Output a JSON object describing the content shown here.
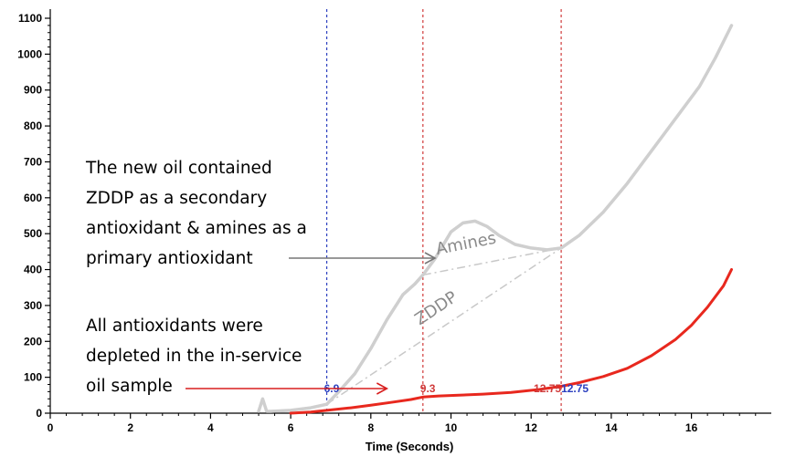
{
  "chart_data": {
    "type": "line",
    "xlabel": "Time (Seconds)",
    "ylabel": "",
    "xlim": [
      0,
      18
    ],
    "ylim": [
      0,
      1100
    ],
    "x_ticks": [
      "0",
      "2",
      "4",
      "6",
      "8",
      "10",
      "12",
      "14",
      "16"
    ],
    "y_ticks": [
      "0",
      "100",
      "200",
      "300",
      "400",
      "500",
      "600",
      "700",
      "800",
      "900",
      "1000",
      "1100"
    ],
    "grid": false,
    "series": [
      {
        "color": "#cfcfcf",
        "x": [
          5.2,
          5.3,
          5.4,
          5.5,
          6.0,
          6.5,
          6.9,
          7.2,
          7.6,
          8.0,
          8.4,
          8.8,
          9.1,
          9.3,
          9.6,
          10.0,
          10.3,
          10.6,
          10.9,
          11.2,
          11.6,
          12.0,
          12.4,
          12.75,
          13.2,
          13.8,
          14.4,
          15.0,
          15.6,
          16.2,
          16.6,
          17.0
        ],
        "y": [
          5,
          40,
          5,
          5,
          8,
          15,
          25,
          60,
          110,
          180,
          260,
          330,
          360,
          385,
          430,
          505,
          530,
          535,
          520,
          495,
          470,
          460,
          455,
          460,
          495,
          560,
          640,
          730,
          820,
          910,
          990,
          1080
        ]
      },
      {
        "color": "#e8281e",
        "x": [
          6.0,
          6.5,
          6.9,
          7.5,
          8.0,
          8.5,
          9.0,
          9.3,
          9.7,
          10.2,
          10.8,
          11.5,
          12.2,
          12.75,
          13.2,
          13.8,
          14.4,
          15.0,
          15.6,
          16.0,
          16.4,
          16.8,
          17.0
        ],
        "y": [
          0,
          3,
          8,
          15,
          22,
          30,
          38,
          45,
          48,
          50,
          53,
          58,
          66,
          75,
          85,
          102,
          125,
          160,
          205,
          245,
          295,
          355,
          400
        ]
      }
    ],
    "guides": [
      {
        "x": 6.9,
        "label": "6.9",
        "color": "#2b3fbf"
      },
      {
        "x": 9.3,
        "label": "9.3",
        "color": "#d03a3a"
      },
      {
        "x": 12.75,
        "label": "12.75",
        "color": "#d03a3a"
      },
      {
        "x": 12.75,
        "label": "12.75",
        "color": "#2b3fbf"
      }
    ],
    "baselines": [
      {
        "label": "Amines",
        "color": "#c8c8c8",
        "x": [
          9.3,
          12.75
        ],
        "y": [
          385,
          460
        ]
      },
      {
        "label": "ZDDP",
        "color": "#c8c8c8",
        "x": [
          6.9,
          12.75
        ],
        "y": [
          25,
          460
        ]
      }
    ],
    "annotations": [
      {
        "lines": [
          "The new oil contained",
          "ZDDP as a secondary",
          "antioxidant & amines as a",
          "primary antioxidant"
        ],
        "arrow_color": "#777777",
        "arrow_to": {
          "x": 9.6,
          "y": 435
        }
      },
      {
        "lines": [
          "All antioxidants were",
          "depleted in the in-service",
          "oil sample"
        ],
        "arrow_color": "#d81e1e",
        "arrow_to": {
          "x": 8.4,
          "y": 70
        }
      }
    ]
  }
}
